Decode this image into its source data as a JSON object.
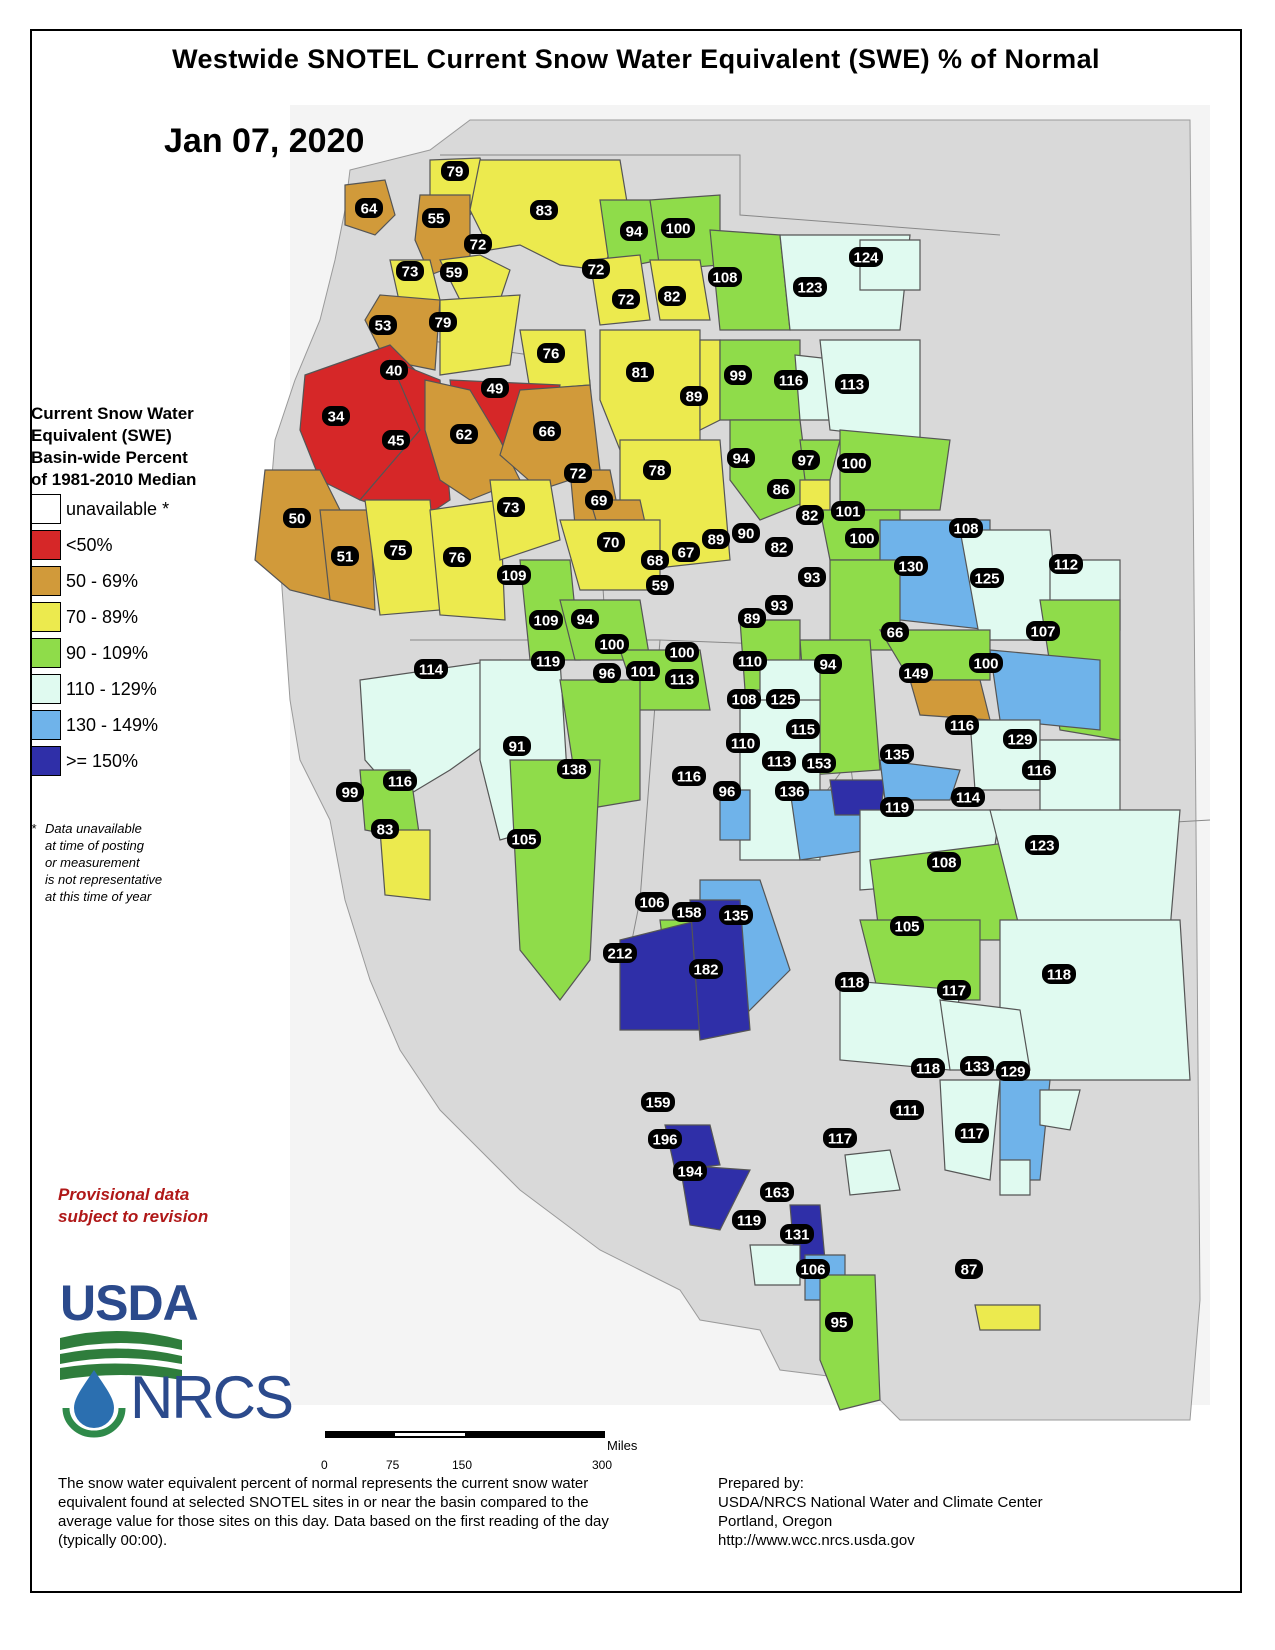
{
  "title": "Westwide SNOTEL Current Snow Water Equivalent (SWE) % of Normal",
  "date": "Jan 07, 2020",
  "legend": {
    "title_lines": [
      "Current Snow Water",
      "Equivalent (SWE)",
      "Basin-wide Percent",
      "of 1981-2010 Median"
    ],
    "classes": [
      {
        "label": "unavailable *",
        "color": "#ffffff"
      },
      {
        "label": "<50%",
        "color": "#d62728"
      },
      {
        "label": "50 - 69%",
        "color": "#d19a3a"
      },
      {
        "label": "70 - 89%",
        "color": "#ecea4e"
      },
      {
        "label": "90 - 109%",
        "color": "#8fdc4a"
      },
      {
        "label": "110 - 129%",
        "color": "#e0faf0"
      },
      {
        "label": "130 - 149%",
        "color": "#6fb3ea"
      },
      {
        "label": ">= 150%",
        "color": "#2f2fa8"
      }
    ]
  },
  "note": {
    "star": "*",
    "text": "Data unavailable\nat time of posting\nor measurement\nis not representative\nat this time of year"
  },
  "provisional": "Provisional data\nsubject to revision",
  "logos": {
    "usda": "USDA",
    "nrcs": "NRCS",
    "usda_icon": "usda-logo",
    "nrcs_icon": "nrcs-water-drop-logo"
  },
  "scale": {
    "unit": "Miles",
    "ticks": [
      "0",
      "75",
      "150",
      "300"
    ]
  },
  "description": "The snow water equivalent percent of normal represents the current snow water equivalent found at selected SNOTEL sites in or near the basin compared to the average value for those sites on this day. Data based on the first reading of the day (typically 00:00).",
  "prepared_by": [
    "Prepared by:",
    "USDA/NRCS National Water and Climate Center",
    "Portland, Oregon",
    "http://www.wcc.nrcs.usda.gov"
  ],
  "basin_values": [
    "79",
    "64",
    "55",
    "83",
    "94",
    "100",
    "72",
    "73",
    "59",
    "72",
    "108",
    "124",
    "72",
    "82",
    "123",
    "53",
    "79",
    "76",
    "40",
    "49",
    "81",
    "99",
    "116",
    "113",
    "34",
    "89",
    "45",
    "62",
    "66",
    "94",
    "97",
    "100",
    "72",
    "78",
    "69",
    "86",
    "50",
    "73",
    "82",
    "101",
    "89",
    "90",
    "51",
    "75",
    "76",
    "70",
    "100",
    "108",
    "68",
    "67",
    "82",
    "109",
    "130",
    "125",
    "112",
    "59",
    "93",
    "109",
    "94",
    "93",
    "89",
    "100",
    "107",
    "119",
    "114",
    "96",
    "101",
    "100",
    "110",
    "94",
    "66",
    "149",
    "100",
    "113",
    "108",
    "125",
    "115",
    "116",
    "110",
    "129",
    "113",
    "153",
    "135",
    "116",
    "96",
    "91",
    "138",
    "116",
    "136",
    "119",
    "114",
    "99",
    "116",
    "83",
    "105",
    "108",
    "123",
    "106",
    "158",
    "135",
    "105",
    "212",
    "182",
    "118",
    "117",
    "118",
    "118",
    "133",
    "129",
    "111",
    "159",
    "117",
    "117",
    "196",
    "194",
    "163",
    "119",
    "131",
    "106",
    "87",
    "95"
  ]
}
